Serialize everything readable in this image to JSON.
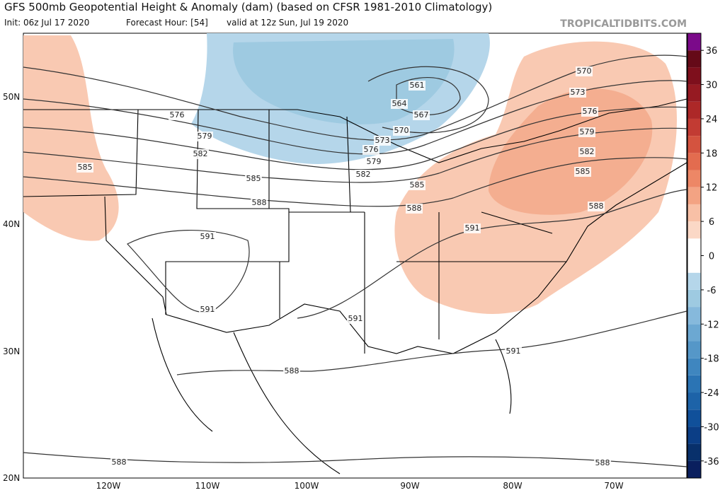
{
  "header": {
    "title": "GFS 500mb Geopotential Height & Anomaly (dam) (based on CFSR 1981-2010 Climatology)",
    "init": "Init: 06z Jul 17 2020",
    "forecast": "Forecast Hour: [54]",
    "valid": "valid at 12z Sun, Jul 19 2020",
    "watermark": "TROPICALTIDBITS.COM"
  },
  "map": {
    "lat_labels": [
      "50N",
      "40N",
      "30N",
      "20N"
    ],
    "lon_labels": [
      "120W",
      "110W",
      "100W",
      "90W",
      "80W",
      "70W"
    ],
    "contour_labels": [
      "570",
      "573",
      "576",
      "579",
      "582",
      "585",
      "588",
      "561",
      "564",
      "567",
      "570",
      "573",
      "576",
      "579",
      "582",
      "585",
      "588",
      "591",
      "576",
      "579",
      "582",
      "585",
      "585",
      "588",
      "591",
      "591",
      "591",
      "591",
      "588",
      "588",
      "588"
    ]
  },
  "colorbar": {
    "range": [
      -39,
      39
    ],
    "ticks": [
      36,
      30,
      24,
      18,
      12,
      6,
      0,
      -6,
      -12,
      -18,
      -24,
      -30,
      -36
    ],
    "colors": [
      "#0a1f5e",
      "#08306b",
      "#0b3e86",
      "#10509a",
      "#1d63a8",
      "#2b74b4",
      "#3f86bf",
      "#5597c8",
      "#6ca8d2",
      "#86b9dc",
      "#9ecae1",
      "#b5d6ea",
      "#ffffff",
      "#ffffff",
      "#fbd8c6",
      "#f8c0a6",
      "#f3a383",
      "#ed8766",
      "#e36c4f",
      "#d4533f",
      "#c23b33",
      "#ad2828",
      "#961a22",
      "#7e0f1c",
      "#650a18",
      "#7b0a8a"
    ]
  }
}
